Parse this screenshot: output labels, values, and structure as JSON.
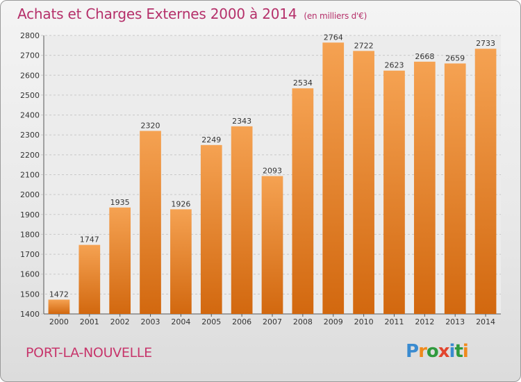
{
  "header": {
    "title": "Achats et Charges Externes 2000 à 2014",
    "unit": "(en milliers d'€)"
  },
  "footer": {
    "town": "PORT-LA-NOUVELLE",
    "logo_letters": [
      "P",
      "r",
      "o",
      "x",
      "i",
      "t",
      "i"
    ],
    "logo_colors": [
      "#3a8bd0",
      "#f08a1c",
      "#2f9a3d",
      "#e2452e",
      "#3a8bd0",
      "#2f9a3d",
      "#f08a1c"
    ]
  },
  "chart_data": {
    "type": "bar",
    "title": "Achats et Charges Externes 2000 à 2014",
    "categories": [
      "2000",
      "2001",
      "2002",
      "2003",
      "2004",
      "2005",
      "2006",
      "2007",
      "2008",
      "2009",
      "2010",
      "2011",
      "2012",
      "2013",
      "2014"
    ],
    "values": [
      1472,
      1747,
      1935,
      2320,
      1926,
      2249,
      2343,
      2093,
      2534,
      2764,
      2722,
      2623,
      2668,
      2659,
      2733
    ],
    "ylim": [
      1400,
      2800
    ],
    "yticks": [
      1400,
      1500,
      1600,
      1700,
      1800,
      1900,
      2000,
      2100,
      2200,
      2300,
      2400,
      2500,
      2600,
      2700,
      2800
    ],
    "grid": true,
    "bar_color": "#f0963b",
    "bar_color_dark": "#d66f14"
  }
}
